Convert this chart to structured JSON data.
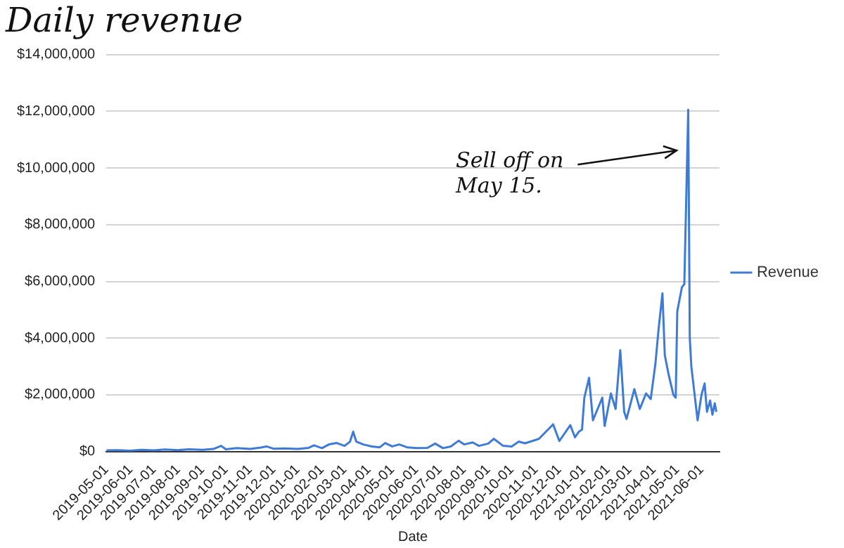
{
  "chart_data": {
    "type": "line",
    "title": "Daily revenue",
    "xlabel": "Date",
    "x": [
      "2019-05-01",
      "2019-05-15",
      "2019-06-01",
      "2019-06-15",
      "2019-07-01",
      "2019-07-15",
      "2019-08-01",
      "2019-08-15",
      "2019-09-01",
      "2019-09-15",
      "2019-09-25",
      "2019-10-01",
      "2019-10-15",
      "2019-11-01",
      "2019-11-15",
      "2019-11-22",
      "2019-12-01",
      "2019-12-15",
      "2020-01-01",
      "2020-01-15",
      "2020-01-22",
      "2020-02-01",
      "2020-02-10",
      "2020-02-20",
      "2020-03-01",
      "2020-03-08",
      "2020-03-12",
      "2020-03-16",
      "2020-03-25",
      "2020-04-05",
      "2020-04-15",
      "2020-04-22",
      "2020-05-01",
      "2020-05-10",
      "2020-05-20",
      "2020-06-01",
      "2020-06-15",
      "2020-06-25",
      "2020-07-05",
      "2020-07-15",
      "2020-07-25",
      "2020-08-01",
      "2020-08-12",
      "2020-08-20",
      "2020-09-01",
      "2020-09-08",
      "2020-09-20",
      "2020-10-01",
      "2020-10-10",
      "2020-10-18",
      "2020-11-05",
      "2020-11-23",
      "2020-12-01",
      "2020-12-15",
      "2020-12-21",
      "2020-12-26",
      "2020-12-30",
      "2021-01-02",
      "2021-01-08",
      "2021-01-13",
      "2021-01-25",
      "2021-01-28",
      "2021-02-05",
      "2021-02-11",
      "2021-02-17",
      "2021-02-22",
      "2021-02-25",
      "2021-03-07",
      "2021-03-14",
      "2021-03-22",
      "2021-03-28",
      "2021-04-03",
      "2021-04-07",
      "2021-04-12",
      "2021-04-15",
      "2021-04-20",
      "2021-04-26",
      "2021-04-29",
      "2021-05-01",
      "2021-05-07",
      "2021-05-10",
      "2021-05-15",
      "2021-05-17",
      "2021-05-19",
      "2021-05-27",
      "2021-06-01",
      "2021-06-05",
      "2021-06-08",
      "2021-06-12",
      "2021-06-15",
      "2021-06-18",
      "2021-06-20"
    ],
    "series": [
      {
        "name": "Revenue",
        "color": "#3d7bd6",
        "values": [
          40000,
          50000,
          30000,
          60000,
          40000,
          70000,
          50000,
          80000,
          60000,
          90000,
          200000,
          80000,
          120000,
          90000,
          140000,
          180000,
          100000,
          110000,
          90000,
          130000,
          220000,
          120000,
          250000,
          300000,
          200000,
          350000,
          700000,
          350000,
          250000,
          180000,
          150000,
          300000,
          180000,
          250000,
          150000,
          120000,
          130000,
          280000,
          120000,
          180000,
          380000,
          250000,
          320000,
          200000,
          280000,
          450000,
          200000,
          180000,
          350000,
          290000,
          450000,
          960000,
          370000,
          930000,
          500000,
          700000,
          770000,
          1900000,
          2600000,
          1100000,
          1900000,
          900000,
          2050000,
          1500000,
          3570000,
          1400000,
          1150000,
          2200000,
          1500000,
          2050000,
          1850000,
          3100000,
          4300000,
          5580000,
          3400000,
          2700000,
          2000000,
          1900000,
          4950000,
          5800000,
          5900000,
          12050000,
          4000000,
          3000000,
          1100000,
          2000000,
          2400000,
          1400000,
          1800000,
          1300000,
          1700000,
          1400000
        ]
      }
    ],
    "xlim": [
      "2019-05-01",
      "2021-06-24"
    ],
    "xticks": [
      "2019-05-01",
      "2019-06-01",
      "2019-07-01",
      "2019-08-01",
      "2019-09-01",
      "2019-10-01",
      "2019-11-01",
      "2019-12-01",
      "2020-01-01",
      "2020-02-01",
      "2020-03-01",
      "2020-04-01",
      "2020-05-01",
      "2020-06-01",
      "2020-07-01",
      "2020-08-01",
      "2020-09-01",
      "2020-10-01",
      "2020-11-01",
      "2020-12-01",
      "2021-01-01",
      "2021-02-01",
      "2021-03-01",
      "2021-04-01",
      "2021-05-01",
      "2021-06-01"
    ],
    "ylim": [
      0,
      14000000
    ],
    "yticks": [
      {
        "value": 0,
        "label": "$0"
      },
      {
        "value": 2000000,
        "label": "$2,000,000"
      },
      {
        "value": 4000000,
        "label": "$4,000,000"
      },
      {
        "value": 6000000,
        "label": "$6,000,000"
      },
      {
        "value": 8000000,
        "label": "$8,000,000"
      },
      {
        "value": 10000000,
        "label": "$10,000,000"
      },
      {
        "value": 12000000,
        "label": "$12,000,000"
      },
      {
        "value": 14000000,
        "label": "$14,000,000"
      }
    ],
    "grid": "y",
    "legend": "right",
    "annotations": [
      "Sell off on\nMay 15."
    ]
  }
}
